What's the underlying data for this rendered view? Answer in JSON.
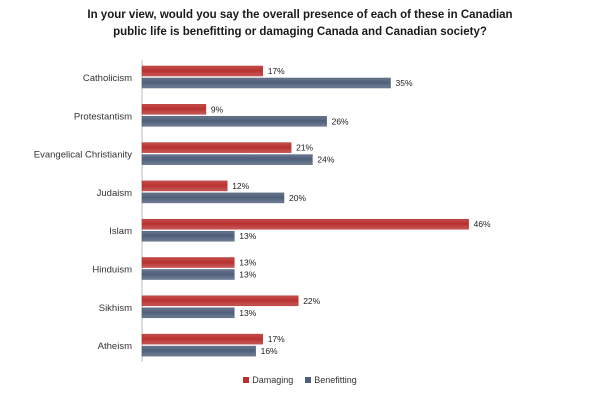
{
  "title_line1": "In your view, would you say the overall presence of each of these in Canadian",
  "title_line2": "public life is benefitting or damaging Canada and Canadian society?",
  "colors": {
    "damaging": "#b8312f",
    "benefitting": "#4f5f7a"
  },
  "chart_data": {
    "type": "bar",
    "orientation": "horizontal",
    "categories": [
      "Catholicism",
      "Protestantism",
      "Evangelical Christianity",
      "Judaism",
      "Islam",
      "Hinduism",
      "Sikhism",
      "Atheism"
    ],
    "series": [
      {
        "name": "Damaging",
        "values": [
          17,
          9,
          21,
          12,
          46,
          13,
          22,
          17
        ]
      },
      {
        "name": "Benefitting",
        "values": [
          35,
          26,
          24,
          20,
          13,
          13,
          13,
          16
        ]
      }
    ],
    "value_suffix": "%",
    "xlim": [
      0,
      50
    ],
    "grid": false,
    "legend_position": "bottom"
  }
}
